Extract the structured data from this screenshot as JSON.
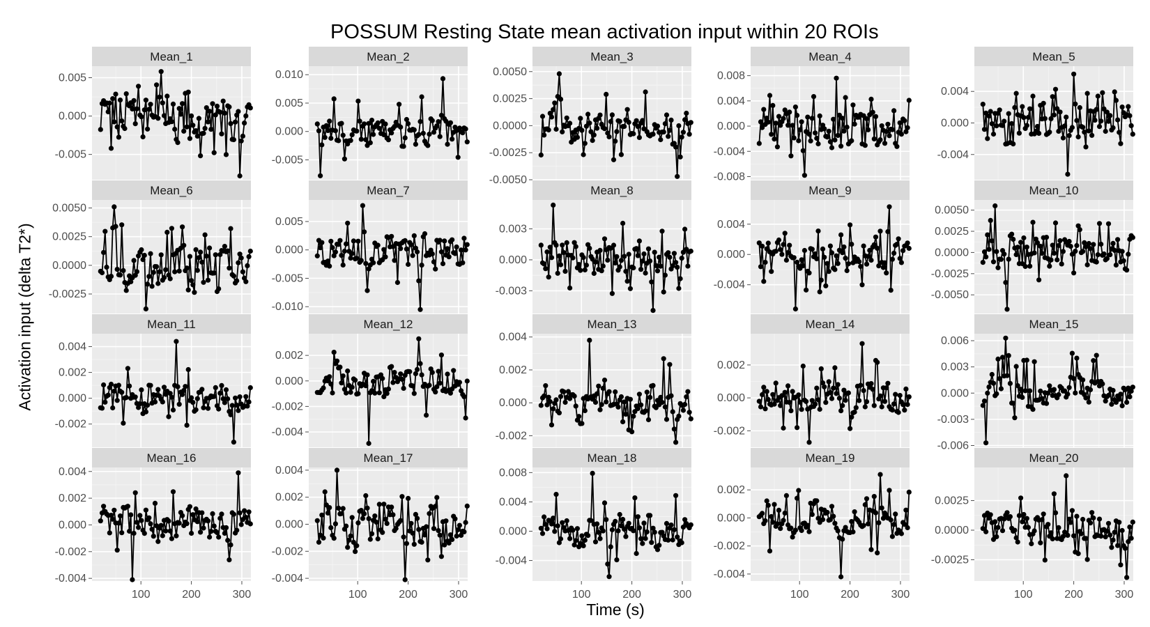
{
  "title": "POSSUM Resting State mean activation input within 20 ROIs",
  "xlabel": "Time (s)",
  "ylabel": "Activation input (delta T2*)",
  "chart_data": {
    "type": "line",
    "title": "POSSUM Resting State mean activation input within 20 ROIs",
    "xlabel": "Time (s)",
    "ylabel": "Activation input (delta T2*)",
    "grid": true,
    "legend": "none",
    "colors": {
      "panel_bg": "#ebebeb",
      "strip_bg": "#d9d9d9",
      "grid": "#ffffff",
      "series": "#000000",
      "tick_text": "#4d4d4d"
    },
    "x_range": [
      3,
      318
    ],
    "x_ticks": [
      100,
      200,
      300
    ],
    "sampling": {
      "t_start": 20,
      "t_step": 3,
      "n_points": 100
    },
    "panels": [
      {
        "name": "Mean_1",
        "ylim": [
          -0.0083,
          0.0065
        ],
        "yticks": [
          -0.005,
          0.0,
          0.005
        ],
        "ytick_labels": [
          "-0.005",
          "0.000",
          "0.005"
        ],
        "amp": 0.0028,
        "lo": -0.0078,
        "hi": 0.0058,
        "trend": 0,
        "drift": 0.0004,
        "seed": 11
      },
      {
        "name": "Mean_2",
        "ylim": [
          -0.0085,
          0.0115
        ],
        "yticks": [
          -0.005,
          0.0,
          0.005,
          0.01
        ],
        "ytick_labels": [
          "-0.005",
          "0.000",
          "0.005",
          "0.010"
        ],
        "amp": 0.0028,
        "lo": -0.0078,
        "hi": 0.0093,
        "trend": 0,
        "drift": 0.0006,
        "seed": 23
      },
      {
        "name": "Mean_3",
        "ylim": [
          -0.005,
          0.0055
        ],
        "yticks": [
          -0.005,
          -0.0025,
          0.0,
          0.0025,
          0.005
        ],
        "ytick_labels": [
          "-0.0050",
          "-0.0025",
          "0.0000",
          "0.0025",
          "0.0050"
        ],
        "amp": 0.0016,
        "lo": -0.0047,
        "hi": 0.0048,
        "trend": 0,
        "drift": 0.0003,
        "seed": 37
      },
      {
        "name": "Mean_4",
        "ylim": [
          -0.0085,
          0.0095
        ],
        "yticks": [
          -0.008,
          -0.004,
          0.0,
          0.004,
          0.008
        ],
        "ytick_labels": [
          "-0.008",
          "-0.004",
          "0.000",
          "0.004",
          "0.008"
        ],
        "amp": 0.0036,
        "lo": -0.0078,
        "hi": 0.0076,
        "trend": 0,
        "drift": 0,
        "seed": 41
      },
      {
        "name": "Mean_5",
        "ylim": [
          -0.0072,
          0.0072
        ],
        "yticks": [
          -0.004,
          0.0,
          0.004
        ],
        "ytick_labels": [
          "-0.004",
          "0.000",
          "0.004"
        ],
        "amp": 0.0028,
        "lo": -0.0065,
        "hi": 0.0062,
        "trend": 0,
        "drift": 0,
        "seed": 53
      },
      {
        "name": "Mean_6",
        "ylim": [
          -0.0042,
          0.0057
        ],
        "yticks": [
          -0.0025,
          0.0,
          0.0025,
          0.005
        ],
        "ytick_labels": [
          "-0.0025",
          "0.0000",
          "0.0025",
          "0.0050"
        ],
        "amp": 0.0018,
        "lo": -0.0038,
        "hi": 0.0051,
        "trend": 0,
        "drift": 0.0002,
        "seed": 61
      },
      {
        "name": "Mean_7",
        "ylim": [
          -0.0112,
          0.0088
        ],
        "yticks": [
          -0.01,
          -0.005,
          0.0,
          0.005
        ],
        "ytick_labels": [
          "-0.010",
          "-0.005",
          "0.000",
          "0.005"
        ],
        "amp": 0.0028,
        "lo": -0.0105,
        "hi": 0.0078,
        "trend": 0,
        "drift": 0,
        "seed": 73
      },
      {
        "name": "Mean_8",
        "ylim": [
          -0.0052,
          0.0058
        ],
        "yticks": [
          -0.003,
          0.0,
          0.003
        ],
        "ytick_labels": [
          "-0.003",
          "0.000",
          "0.003"
        ],
        "amp": 0.002,
        "lo": -0.0049,
        "hi": 0.0053,
        "trend": 0,
        "drift": 0,
        "seed": 83
      },
      {
        "name": "Mean_9",
        "ylim": [
          -0.0078,
          0.0072
        ],
        "yticks": [
          -0.004,
          0.0,
          0.004
        ],
        "ytick_labels": [
          "-0.004",
          "0.000",
          "0.004"
        ],
        "amp": 0.0024,
        "lo": -0.0072,
        "hi": 0.0063,
        "trend": 0,
        "drift": 0.0003,
        "seed": 97
      },
      {
        "name": "Mean_10",
        "ylim": [
          -0.0072,
          0.0062
        ],
        "yticks": [
          -0.005,
          -0.0025,
          0.0,
          0.0025,
          0.005
        ],
        "ytick_labels": [
          "-0.0050",
          "-0.0025",
          "0.0000",
          "0.0025",
          "0.0050"
        ],
        "amp": 0.0022,
        "lo": -0.0067,
        "hi": 0.0055,
        "trend": 0,
        "drift": 0,
        "seed": 101
      },
      {
        "name": "Mean_11",
        "ylim": [
          -0.0038,
          0.005
        ],
        "yticks": [
          -0.002,
          0.0,
          0.002,
          0.004
        ],
        "ytick_labels": [
          "-0.002",
          "0.000",
          "0.002",
          "0.004"
        ],
        "amp": 0.0012,
        "lo": -0.0034,
        "hi": 0.0044,
        "trend": 0,
        "drift": 0.0004,
        "seed": 113
      },
      {
        "name": "Mean_12",
        "ylim": [
          -0.0052,
          0.0037
        ],
        "yticks": [
          -0.004,
          -0.002,
          0.0,
          0.002
        ],
        "ytick_labels": [
          "-0.004",
          "-0.002",
          "0.000",
          "0.002"
        ],
        "amp": 0.0013,
        "lo": -0.0049,
        "hi": 0.0033,
        "trend": 0,
        "drift": 0.0003,
        "seed": 127
      },
      {
        "name": "Mean_13",
        "ylim": [
          -0.0027,
          0.0042
        ],
        "yticks": [
          -0.002,
          0.0,
          0.002,
          0.004
        ],
        "ytick_labels": [
          "-0.002",
          "0.000",
          "0.002",
          "0.004"
        ],
        "amp": 0.001,
        "lo": -0.0024,
        "hi": 0.0038,
        "trend": 0,
        "drift": 0.0003,
        "seed": 131
      },
      {
        "name": "Mean_14",
        "ylim": [
          -0.003,
          0.0039
        ],
        "yticks": [
          -0.002,
          0.0,
          0.002
        ],
        "ytick_labels": [
          "-0.002",
          "0.000",
          "0.002"
        ],
        "amp": 0.001,
        "lo": -0.0027,
        "hi": 0.0033,
        "trend": 0,
        "drift": 0.0002,
        "seed": 149
      },
      {
        "name": "Mean_15",
        "ylim": [
          -0.0062,
          0.0068
        ],
        "yticks": [
          -0.006,
          -0.003,
          0.0,
          0.003,
          0.006
        ],
        "ytick_labels": [
          "-0.006",
          "-0.003",
          "0.000",
          "0.003",
          "0.006"
        ],
        "amp": 0.0017,
        "lo": -0.0057,
        "hi": 0.0063,
        "trend": 0,
        "drift": 0.0008,
        "seed": 157
      },
      {
        "name": "Mean_16",
        "ylim": [
          -0.0042,
          0.0043
        ],
        "yticks": [
          -0.004,
          -0.002,
          0.0,
          0.002,
          0.004
        ],
        "ytick_labels": [
          "-0.004",
          "-0.002",
          "0.000",
          "0.002",
          "0.004"
        ],
        "amp": 0.0013,
        "lo": -0.0041,
        "hi": 0.0039,
        "trend": 0,
        "drift": 0.0003,
        "seed": 163
      },
      {
        "name": "Mean_17",
        "ylim": [
          -0.0042,
          0.0042
        ],
        "yticks": [
          -0.004,
          -0.002,
          0.0,
          0.002,
          0.004
        ],
        "ytick_labels": [
          "-0.004",
          "-0.002",
          "0.000",
          "0.002",
          "0.004"
        ],
        "amp": 0.0016,
        "lo": -0.0041,
        "hi": 0.004,
        "trend": 0,
        "drift": 0.0004,
        "seed": 179
      },
      {
        "name": "Mean_18",
        "ylim": [
          -0.0068,
          0.0087
        ],
        "yticks": [
          -0.004,
          0.0,
          0.004,
          0.008
        ],
        "ytick_labels": [
          "-0.004",
          "0.000",
          "0.004",
          "0.008"
        ],
        "amp": 0.0022,
        "lo": -0.0062,
        "hi": 0.0079,
        "trend": 0,
        "drift": 0.0005,
        "seed": 181
      },
      {
        "name": "Mean_19",
        "ylim": [
          -0.0045,
          0.0036
        ],
        "yticks": [
          -0.004,
          -0.002,
          0.0,
          0.002
        ],
        "ytick_labels": [
          "-0.004",
          "-0.002",
          "0.000",
          "0.002"
        ],
        "amp": 0.0011,
        "lo": -0.0042,
        "hi": 0.0031,
        "trend": 0,
        "drift": 0.0005,
        "seed": 191
      },
      {
        "name": "Mean_20",
        "ylim": [
          -0.0043,
          0.0053
        ],
        "yticks": [
          -0.0025,
          0.0,
          0.0025
        ],
        "ytick_labels": [
          "-0.0025",
          "0.0000",
          "0.0025"
        ],
        "amp": 0.0015,
        "lo": -0.004,
        "hi": 0.0046,
        "trend": 0,
        "drift": 0.0003,
        "seed": 193
      }
    ]
  }
}
